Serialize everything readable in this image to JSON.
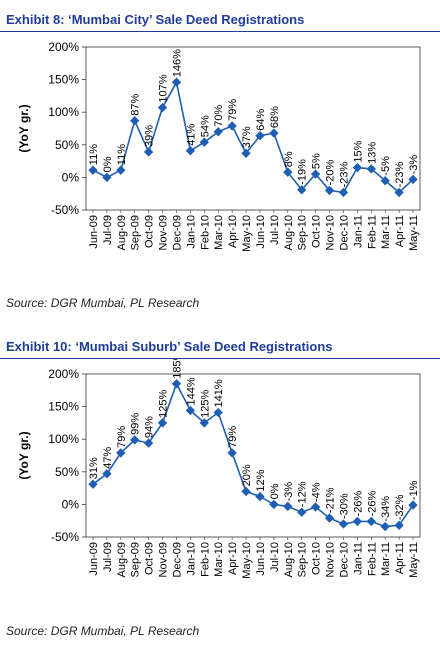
{
  "chart_data": [
    {
      "type": "line",
      "title": "Exhibit 8:  ‘Mumbai City’ Sale Deed Registrations",
      "ylabel": "(YoY gr.)",
      "xlabel": "",
      "ylim": [
        -50,
        200
      ],
      "yticks": [
        "-50%",
        "0%",
        "50%",
        "100%",
        "150%",
        "200%"
      ],
      "grid": false,
      "legend": "none",
      "color": "#1f5fb3",
      "categories": [
        "Jun-09",
        "Jul-09",
        "Aug-09",
        "Sep-09",
        "Oct-09",
        "Nov-09",
        "Dec-09",
        "Jan-10",
        "Feb-10",
        "Mar-10",
        "Apr-10",
        "May-10",
        "Jun-10",
        "Jul-10",
        "Aug-10",
        "Sep-10",
        "Oct-10",
        "Nov-10",
        "Dec-10",
        "Jan-11",
        "Feb-11",
        "Mar-11",
        "Apr-11",
        "May-11"
      ],
      "values": [
        11,
        0,
        11,
        87,
        39,
        107,
        146,
        41,
        54,
        70,
        79,
        37,
        64,
        68,
        8,
        -19,
        5,
        -20,
        -23,
        15,
        13,
        -5,
        -23,
        -3
      ],
      "data_labels": [
        "11%",
        "0%",
        "11%",
        "87%",
        "39%",
        "107%",
        "146%",
        "41%",
        "54%",
        "70%",
        "79%",
        "37%",
        "64%",
        "68%",
        "8%",
        "-19%",
        "5%",
        "-20%",
        "-23%",
        "15%",
        "13%",
        "-5%",
        "-23%",
        "-3%"
      ],
      "source": "Source: DGR Mumbai, PL Research"
    },
    {
      "type": "line",
      "title": "Exhibit 10:  ‘Mumbai Suburb’ Sale Deed Registrations",
      "ylabel": "(YoY gr.)",
      "xlabel": "",
      "ylim": [
        -50,
        200
      ],
      "yticks": [
        "-50%",
        "0%",
        "50%",
        "100%",
        "150%",
        "200%"
      ],
      "grid": false,
      "legend": "none",
      "color": "#1f5fb3",
      "categories": [
        "Jun-09",
        "Jul-09",
        "Aug-09",
        "Sep-09",
        "Oct-09",
        "Nov-09",
        "Dec-09",
        "Jan-10",
        "Feb-10",
        "Mar-10",
        "Apr-10",
        "May-10",
        "Jun-10",
        "Jul-10",
        "Aug-10",
        "Sep-10",
        "Oct-10",
        "Nov-10",
        "Dec-10",
        "Jan-11",
        "Feb-11",
        "Mar-11",
        "Apr-11",
        "May-11"
      ],
      "values": [
        31,
        47,
        79,
        99,
        94,
        125,
        185,
        144,
        125,
        141,
        79,
        20,
        12,
        0,
        -3,
        -12,
        -4,
        -21,
        -30,
        -26,
        -26,
        -34,
        -32,
        -1
      ],
      "data_labels": [
        "31%",
        "47%",
        "79%",
        "99%",
        "94%",
        "125%",
        "185%",
        "144%",
        "125%",
        "141%",
        "79%",
        "20%",
        "12%",
        "0%",
        "-3%",
        "-12%",
        "-4%",
        "-21%",
        "-30%",
        "-26%",
        "-26%",
        "-34%",
        "-32%",
        "-1%"
      ],
      "source": "Source: DGR Mumbai, PL Research"
    }
  ]
}
